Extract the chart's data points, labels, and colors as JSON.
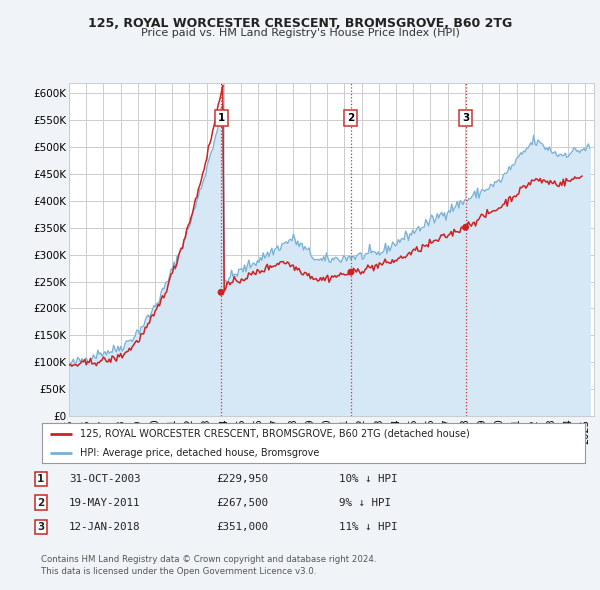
{
  "title1": "125, ROYAL WORCESTER CRESCENT, BROMSGROVE, B60 2TG",
  "title2": "Price paid vs. HM Land Registry's House Price Index (HPI)",
  "xlim_start": 1995.0,
  "xlim_end": 2025.5,
  "ylim_min": 0,
  "ylim_max": 620000,
  "yticks": [
    0,
    50000,
    100000,
    150000,
    200000,
    250000,
    300000,
    350000,
    400000,
    450000,
    500000,
    550000,
    600000
  ],
  "ytick_labels": [
    "£0",
    "£50K",
    "£100K",
    "£150K",
    "£200K",
    "£250K",
    "£300K",
    "£350K",
    "£400K",
    "£450K",
    "£500K",
    "£550K",
    "£600K"
  ],
  "xtick_years": [
    1995,
    1996,
    1997,
    1998,
    1999,
    2000,
    2001,
    2002,
    2003,
    2004,
    2005,
    2006,
    2007,
    2008,
    2009,
    2010,
    2011,
    2012,
    2013,
    2014,
    2015,
    2016,
    2017,
    2018,
    2019,
    2020,
    2021,
    2022,
    2023,
    2024,
    2025
  ],
  "sale_dates": [
    2003.833,
    2011.375,
    2018.04
  ],
  "sale_prices": [
    229950,
    267500,
    351000
  ],
  "sale_labels": [
    "1",
    "2",
    "3"
  ],
  "vline_color": "#cc3333",
  "sale_marker_color": "#cc2222",
  "hpi_line_color": "#7ab0d4",
  "hpi_fill_color": "#d6e8f5",
  "price_line_color": "#cc2222",
  "legend_items": [
    "125, ROYAL WORCESTER CRESCENT, BROMSGROVE, B60 2TG (detached house)",
    "HPI: Average price, detached house, Bromsgrove"
  ],
  "table_rows": [
    [
      "1",
      "31-OCT-2003",
      "£229,950",
      "10% ↓ HPI"
    ],
    [
      "2",
      "19-MAY-2011",
      "£267,500",
      "9% ↓ HPI"
    ],
    [
      "3",
      "12-JAN-2018",
      "£351,000",
      "11% ↓ HPI"
    ]
  ],
  "footnote1": "Contains HM Land Registry data © Crown copyright and database right 2024.",
  "footnote2": "This data is licensed under the Open Government Licence v3.0.",
  "background_color": "#f0f4f8",
  "plot_bg_color": "#ffffff",
  "grid_color": "#cccccc"
}
